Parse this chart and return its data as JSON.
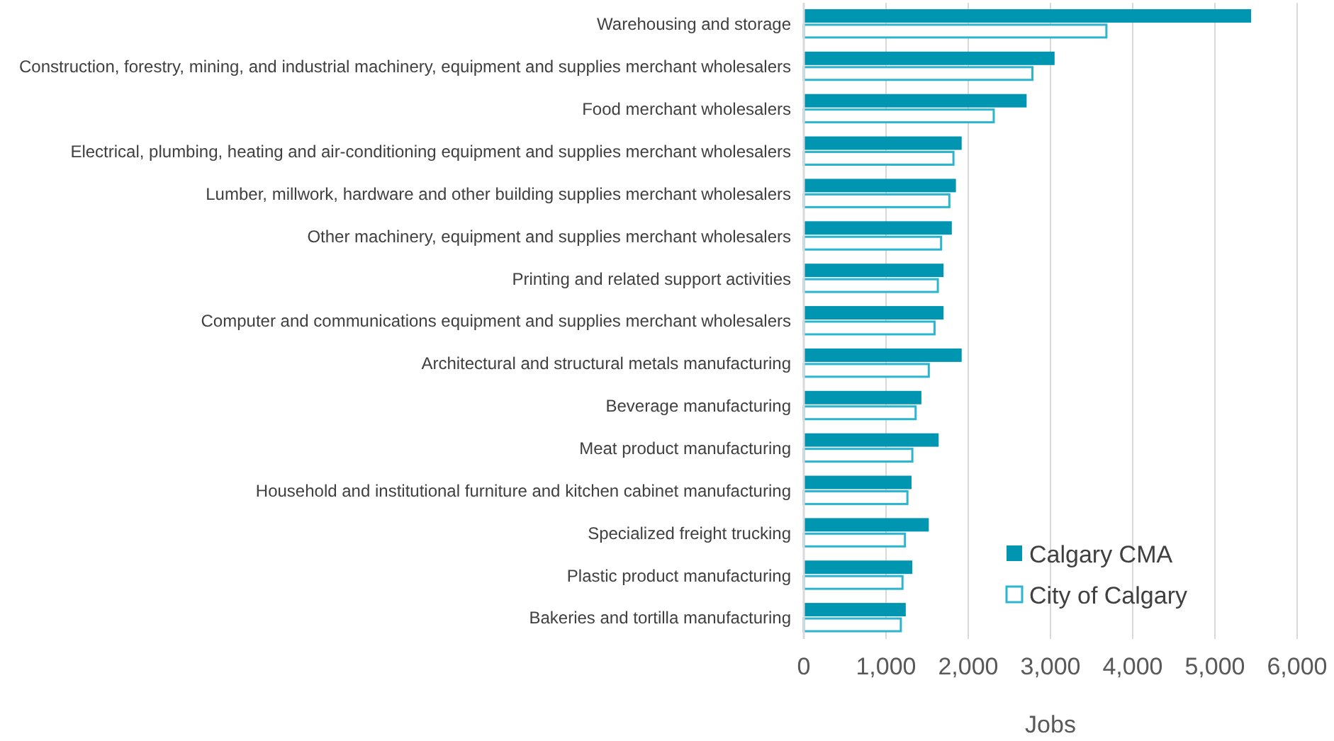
{
  "chart_data": {
    "type": "bar",
    "orientation": "horizontal",
    "xlabel": "Jobs",
    "categories": [
      "Warehousing and storage",
      "Construction, forestry, mining, and industrial machinery, equipment and supplies merchant wholesalers",
      "Food merchant wholesalers",
      "Electrical, plumbing, heating and air-conditioning equipment and supplies merchant wholesalers",
      "Lumber, millwork, hardware and other building supplies merchant wholesalers",
      "Other machinery, equipment and supplies merchant wholesalers",
      "Printing and related support activities",
      "Computer and communications equipment and supplies merchant wholesalers",
      "Architectural and structural metals manufacturing",
      "Beverage manufacturing",
      "Meat product manufacturing",
      "Household and institutional furniture and kitchen cabinet manufacturing",
      "Specialized freight trucking",
      "Plastic product manufacturing",
      "Bakeries and tortilla manufacturing"
    ],
    "series": [
      {
        "name": "Calgary CMA",
        "color": "#0095b0",
        "values": [
          5440,
          3050,
          2710,
          1920,
          1850,
          1800,
          1700,
          1700,
          1920,
          1430,
          1640,
          1310,
          1520,
          1320,
          1240
        ]
      },
      {
        "name": "City of Calgary",
        "color": "#2bb5d0",
        "values": [
          3680,
          2780,
          2310,
          1820,
          1770,
          1670,
          1630,
          1590,
          1520,
          1360,
          1320,
          1260,
          1230,
          1200,
          1180
        ]
      }
    ],
    "xlim": [
      0,
      6000
    ],
    "xticks": [
      {
        "value": 0,
        "label": "0"
      },
      {
        "value": 1000,
        "label": "1,000"
      },
      {
        "value": 2000,
        "label": "2,000"
      },
      {
        "value": 3000,
        "label": "3,000"
      },
      {
        "value": 4000,
        "label": "4,000"
      },
      {
        "value": 5000,
        "label": "5,000"
      },
      {
        "value": 6000,
        "label": "6,000"
      }
    ],
    "grid": "x",
    "legend": "bottom right"
  }
}
